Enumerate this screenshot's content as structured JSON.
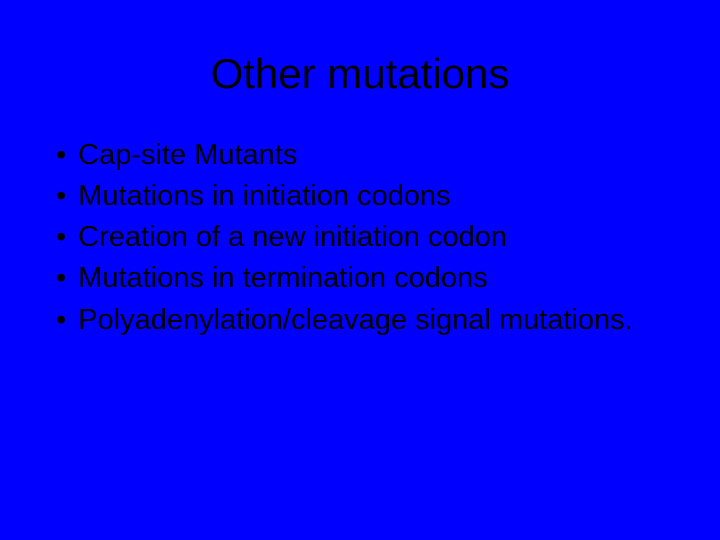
{
  "slide": {
    "background_color": "#0000ff",
    "text_color": "#000000",
    "font_family": "Verdana, Geneva, sans-serif",
    "title": {
      "text": "Other mutations",
      "fontsize": 42,
      "align": "center"
    },
    "bullets": {
      "marker": "•",
      "fontsize": 29,
      "items": [
        "Cap-site Mutants",
        "Mutations in initiation codons",
        "Creation of a new initiation codon",
        "Mutations in termination codons",
        "Polyadenylation/cleavage signal mutations."
      ]
    }
  }
}
